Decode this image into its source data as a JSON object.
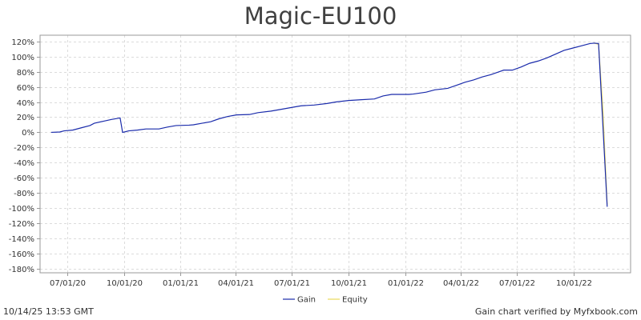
{
  "chart_data": {
    "type": "line",
    "title": "Magic-EU100",
    "xlabel": "",
    "ylabel": "",
    "x_tick_labels": [
      "07/01/20",
      "10/01/20",
      "01/01/21",
      "04/01/21",
      "07/01/21",
      "10/01/21",
      "01/01/22",
      "04/01/22",
      "07/01/22",
      "10/01/22"
    ],
    "x_tick_dates": [
      "2020-07-01",
      "2020-10-01",
      "2021-01-01",
      "2021-04-01",
      "2021-07-01",
      "2021-10-01",
      "2022-01-01",
      "2022-04-01",
      "2022-07-01",
      "2022-10-01"
    ],
    "xlim": [
      "2020-05-18",
      "2023-01-02"
    ],
    "y_tick_values": [
      120,
      100,
      80,
      60,
      40,
      20,
      0,
      -20,
      -40,
      -60,
      -80,
      -100,
      -120,
      -140,
      -160,
      -180
    ],
    "y_tick_labels": [
      "120%",
      "100%",
      "80%",
      "60%",
      "40%",
      "20%",
      "0%",
      "-20%",
      "-40%",
      "-60%",
      "-80%",
      "-100%",
      "-120%",
      "-140%",
      "-160%",
      "-180%"
    ],
    "ylim": [
      -185,
      128
    ],
    "grid": true,
    "legend_placement": "bottom-center",
    "series": [
      {
        "name": "Gain",
        "color": "#1a2bab",
        "points": [
          [
            "2020-06-05",
            0
          ],
          [
            "2020-06-19",
            0.5
          ],
          [
            "2020-06-26",
            2
          ],
          [
            "2020-07-10",
            3
          ],
          [
            "2020-07-24",
            6
          ],
          [
            "2020-08-07",
            9
          ],
          [
            "2020-08-14",
            12
          ],
          [
            "2020-08-28",
            14.5
          ],
          [
            "2020-09-11",
            17
          ],
          [
            "2020-09-25",
            19
          ],
          [
            "2020-09-29",
            0
          ],
          [
            "2020-10-02",
            0.5
          ],
          [
            "2020-10-09",
            2
          ],
          [
            "2020-10-23",
            3
          ],
          [
            "2020-11-06",
            4.5
          ],
          [
            "2020-11-27",
            4.5
          ],
          [
            "2020-12-11",
            7
          ],
          [
            "2020-12-25",
            9
          ],
          [
            "2021-01-15",
            9.5
          ],
          [
            "2021-01-22",
            10
          ],
          [
            "2021-02-05",
            12
          ],
          [
            "2021-02-19",
            14
          ],
          [
            "2021-03-05",
            18
          ],
          [
            "2021-03-19",
            21
          ],
          [
            "2021-04-02",
            23
          ],
          [
            "2021-04-23",
            23.5
          ],
          [
            "2021-05-07",
            26
          ],
          [
            "2021-05-28",
            28
          ],
          [
            "2021-06-11",
            30
          ],
          [
            "2021-07-02",
            33
          ],
          [
            "2021-07-16",
            35
          ],
          [
            "2021-08-06",
            36
          ],
          [
            "2021-08-27",
            38
          ],
          [
            "2021-09-10",
            40
          ],
          [
            "2021-10-01",
            42
          ],
          [
            "2021-10-22",
            43
          ],
          [
            "2021-11-12",
            44
          ],
          [
            "2021-11-26",
            48
          ],
          [
            "2021-12-10",
            50
          ],
          [
            "2022-01-07",
            50
          ],
          [
            "2022-01-14",
            50.5
          ],
          [
            "2022-02-04",
            53
          ],
          [
            "2022-02-18",
            56
          ],
          [
            "2022-03-11",
            58
          ],
          [
            "2022-03-25",
            62
          ],
          [
            "2022-04-08",
            66
          ],
          [
            "2022-04-22",
            69
          ],
          [
            "2022-05-06",
            73
          ],
          [
            "2022-05-20",
            76
          ],
          [
            "2022-06-03",
            80
          ],
          [
            "2022-06-10",
            82
          ],
          [
            "2022-06-24",
            82
          ],
          [
            "2022-07-08",
            86
          ],
          [
            "2022-07-22",
            91
          ],
          [
            "2022-08-05",
            94
          ],
          [
            "2022-08-19",
            98
          ],
          [
            "2022-09-02",
            103
          ],
          [
            "2022-09-16",
            108
          ],
          [
            "2022-09-30",
            111
          ],
          [
            "2022-10-14",
            114
          ],
          [
            "2022-10-28",
            117
          ],
          [
            "2022-11-04",
            117.5
          ],
          [
            "2022-11-11",
            117
          ],
          [
            "2022-11-25",
            -98
          ]
        ]
      },
      {
        "name": "Equity",
        "color": "#e8d85a",
        "points": [
          [
            "2022-11-04",
            117.5
          ],
          [
            "2022-11-11",
            116
          ],
          [
            "2022-11-18",
            30
          ],
          [
            "2022-11-25",
            -95
          ]
        ]
      }
    ]
  },
  "footer": {
    "timestamp": "10/14/25 13:53 GMT",
    "verified": "Gain chart verified by Myfxbook.com"
  }
}
